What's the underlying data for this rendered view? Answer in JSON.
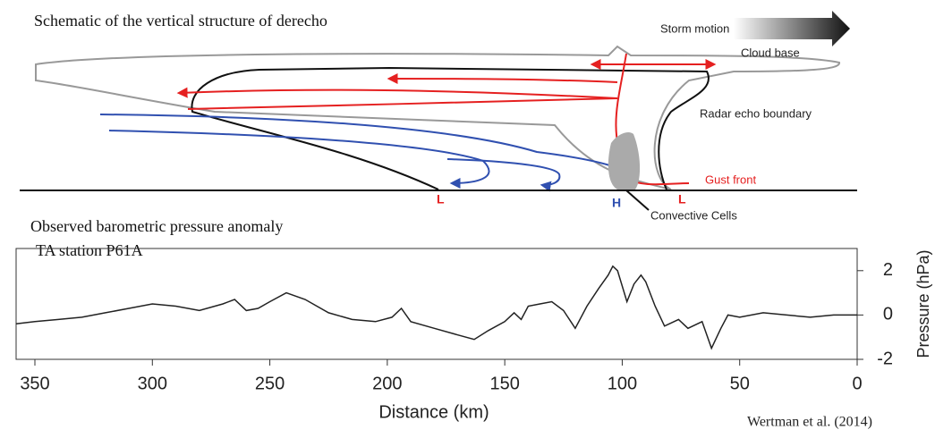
{
  "schematic": {
    "title": "Schematic of the vertical structure of derecho",
    "storm_motion": "Storm motion",
    "cloud_base": "Cloud base",
    "radar_echo": "Radar echo boundary",
    "gust_front": "Gust front",
    "low_left": "L",
    "high": "H",
    "low_right": "L",
    "cells": "Convective Cells"
  },
  "chart_data": {
    "type": "line",
    "title": "Observed barometric pressure anomaly",
    "subtitle": "TA station P61A",
    "xlabel": "Distance (km)",
    "ylabel": "Pressure (hPa)",
    "credit": "Wertman et al. (2014)",
    "xlim": [
      358,
      0
    ],
    "ylim": [
      -2,
      3
    ],
    "xticks": [
      350,
      300,
      250,
      200,
      150,
      100,
      50,
      0
    ],
    "yticks": [
      -2,
      0,
      2
    ],
    "color": "#222222",
    "x": [
      358,
      350,
      340,
      330,
      320,
      310,
      300,
      290,
      280,
      270,
      265,
      260,
      255,
      250,
      243,
      235,
      225,
      215,
      205,
      198,
      194,
      190,
      180,
      170,
      163,
      157,
      150,
      146,
      143,
      140,
      135,
      130,
      125,
      120,
      115,
      110,
      106,
      104,
      102,
      98,
      95,
      92,
      90,
      86,
      82,
      76,
      72,
      66,
      62,
      58,
      55,
      50,
      40,
      30,
      20,
      10,
      0
    ],
    "values": [
      -0.4,
      -0.3,
      -0.2,
      -0.1,
      0.1,
      0.3,
      0.5,
      0.4,
      0.2,
      0.5,
      0.7,
      0.2,
      0.3,
      0.6,
      1.0,
      0.7,
      0.1,
      -0.2,
      -0.3,
      -0.1,
      0.3,
      -0.3,
      -0.6,
      -0.9,
      -1.1,
      -0.7,
      -0.3,
      0.1,
      -0.2,
      0.4,
      0.5,
      0.6,
      0.2,
      -0.6,
      0.4,
      1.2,
      1.8,
      2.2,
      2.0,
      0.6,
      1.4,
      1.8,
      1.5,
      0.4,
      -0.5,
      -0.2,
      -0.6,
      -0.3,
      -1.5,
      -0.6,
      0.0,
      -0.1,
      0.1,
      0.0,
      -0.1,
      0.0,
      0.0
    ]
  }
}
